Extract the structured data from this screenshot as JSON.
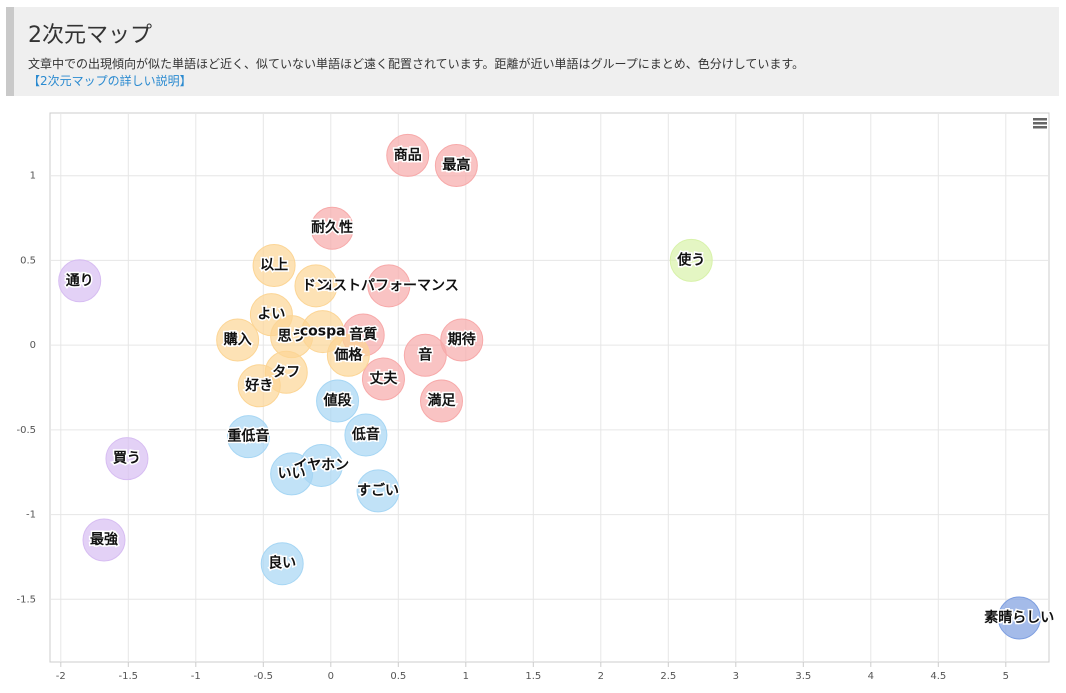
{
  "header": {
    "title": "2次元マップ",
    "description": "文章中での出現傾向が似た単語ほど近く、似ていない単語ほど遠く配置されています。距離が近い単語はグループにまとめ、色分けしています。",
    "link": "【2次元マップの詳しい説明】"
  },
  "chart_data": {
    "type": "scatter",
    "xlim": [
      -2.08,
      5.32
    ],
    "ylim": [
      -1.87,
      1.37
    ],
    "xticks": [
      -2,
      -1.5,
      -1,
      -0.5,
      0,
      0.5,
      1,
      1.5,
      2,
      2.5,
      3,
      3.5,
      4,
      4.5,
      5
    ],
    "yticks": [
      -1.5,
      -1,
      -0.5,
      0,
      0.5,
      1
    ],
    "grid": true,
    "series": [
      {
        "color": "#f7a9a9",
        "labels": [
          "商品",
          "最高",
          "耐久性",
          "コストパフォーマンス",
          "音質",
          "期待",
          "音",
          "丈夫",
          "満足"
        ],
        "x": [
          0.57,
          0.93,
          0.01,
          0.43,
          0.24,
          0.97,
          0.7,
          0.39,
          0.82
        ],
        "values": [
          1.12,
          1.06,
          0.69,
          0.35,
          0.06,
          0.03,
          -0.06,
          -0.2,
          -0.33
        ]
      },
      {
        "color": "#fcd595",
        "labels": [
          "以上",
          "ドン",
          "よい",
          "購入",
          "思う",
          "cospa",
          "価格",
          "タフ",
          "好き"
        ],
        "x": [
          -0.42,
          -0.11,
          -0.44,
          -0.69,
          -0.29,
          -0.06,
          0.13,
          -0.33,
          -0.53
        ],
        "values": [
          0.47,
          0.35,
          0.18,
          0.03,
          0.05,
          0.08,
          -0.06,
          -0.16,
          -0.24
        ]
      },
      {
        "color": "#a6d6f4",
        "labels": [
          "値段",
          "低音",
          "重低音",
          "イヤホン",
          "いい",
          "すごい",
          "良い"
        ],
        "x": [
          0.05,
          0.26,
          -0.61,
          -0.07,
          -0.29,
          0.35,
          -0.36
        ],
        "values": [
          -0.33,
          -0.53,
          -0.54,
          -0.71,
          -0.76,
          -0.86,
          -1.29
        ]
      },
      {
        "color": "#d7bdf2",
        "labels": [
          "通り",
          "買う",
          "最強"
        ],
        "x": [
          -1.86,
          -1.51,
          -1.68
        ],
        "values": [
          0.38,
          -0.67,
          -1.15
        ]
      },
      {
        "color": "#d8f2aa",
        "labels": [
          "使う"
        ],
        "x": [
          2.67
        ],
        "values": [
          0.5
        ]
      },
      {
        "color": "#7d9ee0",
        "labels": [
          "素晴らしい"
        ],
        "x": [
          5.1
        ],
        "values": [
          -1.61
        ]
      }
    ]
  }
}
